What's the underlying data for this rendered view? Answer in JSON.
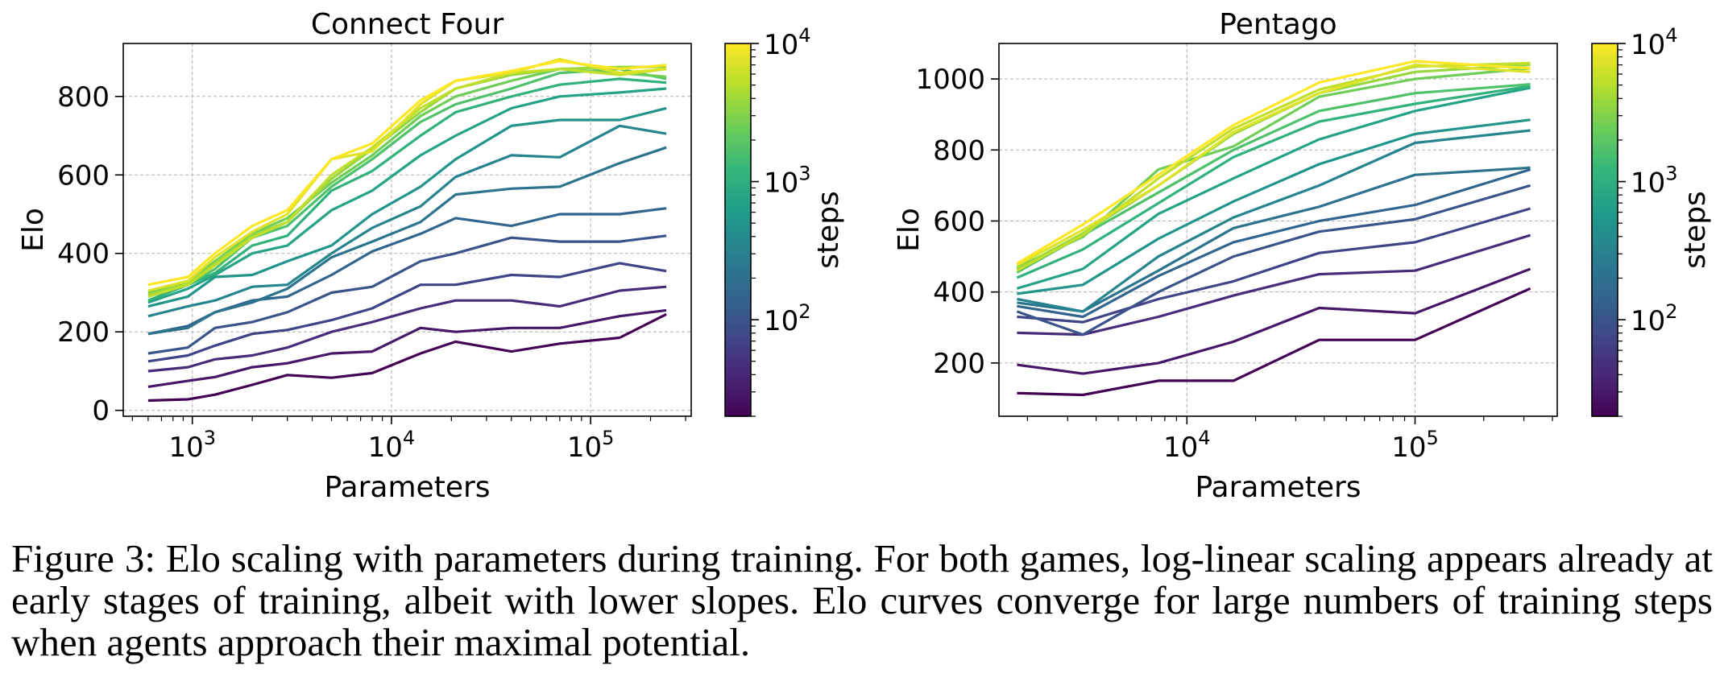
{
  "colorscale": {
    "name": "viridis",
    "stops": [
      "#440154",
      "#482777",
      "#3e4989",
      "#31688e",
      "#26828e",
      "#1f9e89",
      "#35b779",
      "#6ece58",
      "#b5de2b",
      "#fde725"
    ]
  },
  "chart_data": [
    {
      "type": "line",
      "title": "Connect Four",
      "xlabel": "Parameters",
      "ylabel": "Elo",
      "xscale": "log",
      "xlim": [
        450,
        320000
      ],
      "ylim": [
        -15,
        935
      ],
      "xticks": [
        {
          "value": 1000,
          "base": "10",
          "exp": "3"
        },
        {
          "value": 10000,
          "base": "10",
          "exp": "4"
        },
        {
          "value": 100000,
          "base": "10",
          "exp": "5"
        }
      ],
      "yticks": [
        {
          "value": 0,
          "label": "0"
        },
        {
          "value": 200,
          "label": "200"
        },
        {
          "value": 400,
          "label": "400"
        },
        {
          "value": 600,
          "label": "600"
        },
        {
          "value": 800,
          "label": "800"
        }
      ],
      "grid": true,
      "colorbar": {
        "label": "steps",
        "scale": "log",
        "range": [
          20,
          10000
        ],
        "ticks": [
          {
            "value": 100,
            "base": "10",
            "exp": "2"
          },
          {
            "value": 1000,
            "base": "10",
            "exp": "3"
          },
          {
            "value": 10000,
            "base": "10",
            "exp": "4"
          }
        ]
      },
      "x": [
        600,
        950,
        1300,
        2000,
        3000,
        5000,
        8000,
        14000,
        21000,
        40000,
        70000,
        140000,
        240000
      ],
      "series": [
        {
          "steps": 20,
          "values": [
            25,
            28,
            40,
            65,
            90,
            83,
            95,
            145,
            175,
            150,
            170,
            185,
            245
          ]
        },
        {
          "steps": 30,
          "values": [
            60,
            75,
            85,
            110,
            120,
            145,
            150,
            210,
            200,
            210,
            210,
            240,
            255
          ]
        },
        {
          "steps": 45,
          "values": [
            100,
            110,
            130,
            140,
            160,
            200,
            225,
            260,
            280,
            280,
            265,
            305,
            315
          ]
        },
        {
          "steps": 70,
          "values": [
            125,
            140,
            165,
            195,
            205,
            230,
            260,
            320,
            320,
            345,
            340,
            375,
            355
          ]
        },
        {
          "steps": 100,
          "values": [
            145,
            160,
            210,
            225,
            250,
            300,
            315,
            380,
            400,
            440,
            430,
            430,
            445
          ]
        },
        {
          "steps": 150,
          "values": [
            195,
            215,
            250,
            280,
            290,
            345,
            405,
            450,
            490,
            470,
            500,
            500,
            515
          ]
        },
        {
          "steps": 220,
          "values": [
            195,
            210,
            250,
            275,
            310,
            390,
            430,
            480,
            550,
            565,
            570,
            630,
            670
          ]
        },
        {
          "steps": 330,
          "values": [
            240,
            265,
            280,
            315,
            320,
            400,
            465,
            520,
            595,
            650,
            645,
            725,
            705
          ]
        },
        {
          "steps": 500,
          "values": [
            265,
            290,
            340,
            345,
            380,
            420,
            500,
            570,
            640,
            725,
            740,
            740,
            770
          ]
        },
        {
          "steps": 750,
          "values": [
            275,
            310,
            345,
            400,
            420,
            510,
            560,
            650,
            700,
            770,
            800,
            810,
            820
          ]
        },
        {
          "steps": 1100,
          "values": [
            280,
            320,
            350,
            420,
            445,
            560,
            610,
            700,
            760,
            800,
            830,
            845,
            835
          ]
        },
        {
          "steps": 1700,
          "values": [
            290,
            320,
            360,
            440,
            470,
            570,
            640,
            735,
            780,
            820,
            860,
            870,
            845
          ]
        },
        {
          "steps": 2500,
          "values": [
            300,
            330,
            380,
            450,
            490,
            580,
            650,
            750,
            800,
            840,
            870,
            860,
            850
          ]
        },
        {
          "steps": 3800,
          "values": [
            295,
            325,
            375,
            445,
            480,
            590,
            665,
            760,
            820,
            855,
            870,
            875,
            875
          ]
        },
        {
          "steps": 5600,
          "values": [
            290,
            320,
            370,
            440,
            480,
            600,
            670,
            770,
            820,
            860,
            870,
            855,
            870
          ]
        },
        {
          "steps": 7500,
          "values": [
            305,
            330,
            390,
            455,
            500,
            640,
            660,
            780,
            840,
            860,
            895,
            860,
            870
          ]
        },
        {
          "steps": 10000,
          "values": [
            320,
            340,
            400,
            470,
            510,
            640,
            680,
            790,
            840,
            865,
            890,
            870,
            880
          ]
        }
      ]
    },
    {
      "type": "line",
      "title": "Pentago",
      "xlabel": "Parameters",
      "ylabel": "Elo",
      "xscale": "log",
      "xlim": [
        1500,
        420000
      ],
      "ylim": [
        50,
        1100
      ],
      "xticks": [
        {
          "value": 10000,
          "base": "10",
          "exp": "4"
        },
        {
          "value": 100000,
          "base": "10",
          "exp": "5"
        }
      ],
      "yticks": [
        {
          "value": 200,
          "label": "200"
        },
        {
          "value": 400,
          "label": "400"
        },
        {
          "value": 600,
          "label": "600"
        },
        {
          "value": 800,
          "label": "800"
        },
        {
          "value": 1000,
          "label": "1000"
        }
      ],
      "grid": true,
      "colorbar": {
        "label": "steps",
        "scale": "log",
        "range": [
          20,
          10000
        ],
        "ticks": [
          {
            "value": 100,
            "base": "10",
            "exp": "2"
          },
          {
            "value": 1000,
            "base": "10",
            "exp": "3"
          },
          {
            "value": 10000,
            "base": "10",
            "exp": "4"
          }
        ]
      },
      "x": [
        1800,
        3500,
        7500,
        16000,
        38000,
        100000,
        320000
      ],
      "series": [
        {
          "steps": 20,
          "values": [
            115,
            110,
            150,
            150,
            265,
            265,
            410
          ]
        },
        {
          "steps": 30,
          "values": [
            195,
            170,
            200,
            260,
            355,
            340,
            465
          ]
        },
        {
          "steps": 45,
          "values": [
            285,
            280,
            330,
            390,
            450,
            460,
            560
          ]
        },
        {
          "steps": 70,
          "values": [
            330,
            315,
            380,
            430,
            510,
            540,
            635
          ]
        },
        {
          "steps": 100,
          "values": [
            345,
            280,
            400,
            500,
            570,
            605,
            700
          ]
        },
        {
          "steps": 150,
          "values": [
            360,
            330,
            445,
            540,
            600,
            645,
            745
          ]
        },
        {
          "steps": 220,
          "values": [
            370,
            345,
            460,
            580,
            640,
            730,
            750
          ]
        },
        {
          "steps": 330,
          "values": [
            380,
            345,
            500,
            610,
            700,
            820,
            855
          ]
        },
        {
          "steps": 500,
          "values": [
            395,
            420,
            550,
            655,
            760,
            845,
            885
          ]
        },
        {
          "steps": 750,
          "values": [
            410,
            465,
            620,
            720,
            830,
            910,
            975
          ]
        },
        {
          "steps": 1100,
          "values": [
            440,
            520,
            650,
            780,
            880,
            930,
            980
          ]
        },
        {
          "steps": 1700,
          "values": [
            455,
            560,
            680,
            800,
            910,
            960,
            985
          ]
        },
        {
          "steps": 2500,
          "values": [
            470,
            555,
            745,
            810,
            950,
            1000,
            1030
          ]
        },
        {
          "steps": 3800,
          "values": [
            465,
            565,
            700,
            845,
            960,
            1020,
            1040
          ]
        },
        {
          "steps": 5600,
          "values": [
            460,
            560,
            720,
            860,
            970,
            1035,
            1045
          ]
        },
        {
          "steps": 7500,
          "values": [
            475,
            575,
            700,
            850,
            960,
            1040,
            1020
          ]
        },
        {
          "steps": 10000,
          "values": [
            480,
            590,
            730,
            870,
            990,
            1050,
            1030
          ]
        }
      ]
    }
  ],
  "caption": "Figure 3: Elo scaling with parameters during training. For both games, log-linear scaling appears already at early stages of training, albeit with lower slopes. Elo curves converge for large numbers of training steps when agents approach their maximal potential."
}
